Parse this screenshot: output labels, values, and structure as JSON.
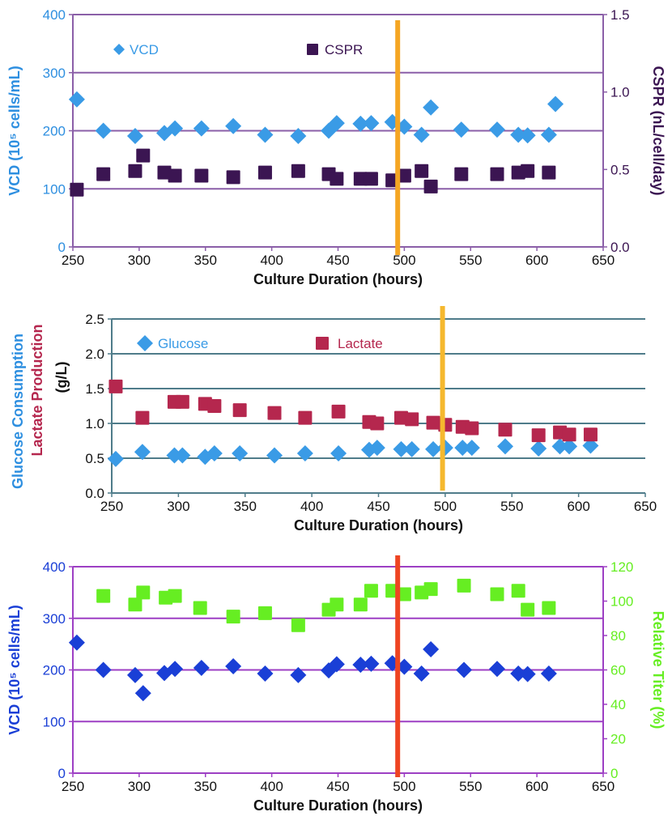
{
  "chart_data": [
    {
      "type": "scatter",
      "xlabel": "Culture Duration (hours)",
      "ylabel": "VCD (10⁵ cells/mL)",
      "y2label": "CSPR (nL/cell/day)",
      "xlim": [
        250,
        650
      ],
      "ylim": [
        0,
        400
      ],
      "y2lim": [
        0,
        1.5
      ],
      "xticks": [
        "250",
        "300",
        "350",
        "400",
        "450",
        "500",
        "550",
        "600",
        "650"
      ],
      "yticks": [
        "0",
        "100",
        "200",
        "300",
        "400"
      ],
      "y2ticks": [
        "0.0",
        "0.5",
        "1.0",
        "1.5"
      ],
      "marker_line_x": 495,
      "legend": {
        "vcd": "VCD",
        "cspr": "CSPR"
      },
      "colors": {
        "vcd": "#3a9be6",
        "cspr": "#3b1552",
        "marker_line": "#f5a623",
        "grid": "#8b5fa8",
        "ylabel": "#2e8fe0",
        "y2label": "#3b1552"
      },
      "series": [
        {
          "name": "VCD",
          "axis": "left",
          "marker": "diamond",
          "x": [
            253,
            273,
            297,
            319,
            327,
            347,
            371,
            395,
            420,
            443,
            449,
            467,
            475,
            491,
            500,
            513,
            520,
            543,
            570,
            586,
            593,
            609,
            614
          ],
          "y": [
            254,
            200,
            191,
            196,
            204,
            204,
            208,
            193,
            191,
            200,
            213,
            212,
            213,
            215,
            207,
            193,
            240,
            202,
            202,
            193,
            192,
            193,
            246
          ]
        },
        {
          "name": "CSPR",
          "axis": "right",
          "marker": "square",
          "x": [
            253,
            273,
            297,
            303,
            319,
            327,
            347,
            371,
            395,
            420,
            443,
            449,
            467,
            475,
            491,
            500,
            513,
            520,
            543,
            570,
            586,
            593,
            609
          ],
          "y": [
            0.37,
            0.47,
            0.49,
            0.59,
            0.48,
            0.46,
            0.46,
            0.45,
            0.48,
            0.49,
            0.47,
            0.44,
            0.44,
            0.44,
            0.43,
            0.46,
            0.49,
            0.39,
            0.47,
            0.47,
            0.48,
            0.49,
            0.48
          ]
        }
      ]
    },
    {
      "type": "scatter",
      "xlabel": "Culture Duration (hours)",
      "ylabel_part1": "Glucose Consumption",
      "ylabel_part2": "Lactate Production",
      "ylabel_unit": "(g/L)",
      "xlim": [
        250,
        650
      ],
      "ylim": [
        0,
        2.5
      ],
      "xticks": [
        "250",
        "300",
        "350",
        "400",
        "450",
        "500",
        "550",
        "600",
        "650"
      ],
      "yticks": [
        "0.0",
        "0.5",
        "1.0",
        "1.5",
        "2.0",
        "2.5"
      ],
      "marker_line_x": 498,
      "legend": {
        "glucose": "Glucose",
        "lactate": "Lactate"
      },
      "colors": {
        "glucose": "#3a9be6",
        "lactate": "#b5274e",
        "marker_line": "#f5b82e",
        "grid": "#4f7c8a",
        "glucose_label": "#2e8fe0",
        "lactate_label": "#b5274e"
      },
      "series": [
        {
          "name": "Glucose",
          "marker": "diamond",
          "x": [
            253,
            273,
            297,
            303,
            320,
            327,
            346,
            372,
            395,
            420,
            443,
            449,
            467,
            475,
            491,
            500,
            513,
            520,
            545,
            570,
            586,
            593,
            609
          ],
          "y": [
            0.49,
            0.59,
            0.54,
            0.54,
            0.52,
            0.57,
            0.57,
            0.54,
            0.57,
            0.57,
            0.62,
            0.65,
            0.63,
            0.63,
            0.63,
            0.65,
            0.65,
            0.65,
            0.67,
            0.64,
            0.67,
            0.67,
            0.68
          ]
        },
        {
          "name": "Lactate",
          "marker": "square",
          "x": [
            253,
            273,
            297,
            303,
            320,
            327,
            346,
            372,
            395,
            420,
            443,
            449,
            467,
            475,
            491,
            500,
            513,
            520,
            545,
            570,
            586,
            593,
            609
          ],
          "y": [
            1.53,
            1.08,
            1.31,
            1.31,
            1.28,
            1.25,
            1.19,
            1.15,
            1.08,
            1.17,
            1.02,
            1.0,
            1.08,
            1.06,
            1.01,
            0.98,
            0.95,
            0.93,
            0.91,
            0.83,
            0.87,
            0.84,
            0.84
          ]
        }
      ]
    },
    {
      "type": "scatter",
      "xlabel": "Culture Duration (hours)",
      "ylabel": "VCD (10⁵ cells/mL)",
      "y2label": "Relative Titer (%)",
      "xlim": [
        250,
        650
      ],
      "ylim": [
        0,
        400
      ],
      "y2lim": [
        0,
        120
      ],
      "xticks": [
        "250",
        "300",
        "350",
        "400",
        "450",
        "500",
        "550",
        "600",
        "650"
      ],
      "yticks": [
        "0",
        "100",
        "200",
        "300",
        "400"
      ],
      "y2ticks": [
        "0",
        "20",
        "40",
        "60",
        "80",
        "100",
        "120"
      ],
      "marker_line_x": 495,
      "colors": {
        "vcd": "#1a3fd6",
        "titer": "#66ee22",
        "marker_line": "#ee4422",
        "grid": "#9d3fc4",
        "ylabel": "#1a3fd6",
        "y2label": "#66ee22"
      },
      "series": [
        {
          "name": "VCD",
          "axis": "left",
          "marker": "diamond",
          "x": [
            253,
            273,
            297,
            303,
            319,
            327,
            347,
            371,
            395,
            420,
            443,
            449,
            467,
            475,
            491,
            500,
            513,
            520,
            545,
            570,
            586,
            593,
            609
          ],
          "y": [
            253,
            200,
            190,
            155,
            194,
            202,
            204,
            207,
            193,
            190,
            199,
            211,
            210,
            212,
            213,
            206,
            193,
            240,
            200,
            202,
            193,
            192,
            193
          ]
        },
        {
          "name": "Relative Titer",
          "axis": "right",
          "marker": "square",
          "x": [
            273,
            297,
            303,
            320,
            327,
            346,
            371,
            395,
            420,
            443,
            449,
            467,
            475,
            491,
            500,
            513,
            520,
            545,
            570,
            586,
            593,
            609
          ],
          "y": [
            103,
            98,
            105,
            102,
            103,
            96,
            91,
            93,
            86,
            95,
            98,
            98,
            106,
            106,
            104,
            105,
            107,
            109,
            104,
            106,
            95,
            96
          ]
        }
      ]
    }
  ]
}
